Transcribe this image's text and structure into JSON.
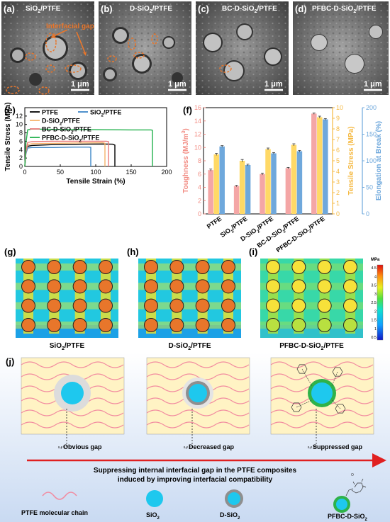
{
  "sem": {
    "panels": [
      {
        "label": "(a)",
        "title_main": "SiO",
        "title_sub": "2",
        "title_tail": "/PTFE",
        "annotation": "Interfacial gap",
        "scale": "1 μm"
      },
      {
        "label": "(b)",
        "title_main": "D-SiO",
        "title_sub": "2",
        "title_tail": "/PTFE",
        "scale": "1 μm"
      },
      {
        "label": "(c)",
        "title_main": "BC-D-SiO",
        "title_sub": "2",
        "title_tail": "/PTFE",
        "scale": "1 μm"
      },
      {
        "label": "(d)",
        "title_main": "PFBC-D-SiO",
        "title_sub": "2",
        "title_tail": "/PTFE",
        "scale": "1 μm"
      }
    ]
  },
  "chart_data": [
    {
      "panel": "(e)",
      "type": "line",
      "xlabel": "Tensile Strain (%)",
      "ylabel": "Tensile Stress (MPa)",
      "xlim": [
        0,
        200
      ],
      "ylim": [
        0,
        14
      ],
      "xticks": [
        0,
        50,
        100,
        150,
        200
      ],
      "yticks": [
        0,
        2,
        4,
        6,
        8,
        10,
        12
      ],
      "legend_position": "top",
      "series": [
        {
          "name": "PTFE",
          "color": "#000000",
          "x": [
            0,
            1.5,
            4,
            10,
            40,
            80,
            110,
            124,
            127,
            127
          ],
          "y": [
            0,
            3.2,
            4.8,
            5.0,
            5.2,
            5.3,
            5.35,
            5.3,
            5.1,
            0
          ]
        },
        {
          "name": "SiO2/PTFE",
          "color": "#3d85c6",
          "x": [
            0,
            1.5,
            4,
            10,
            40,
            70,
            90,
            93,
            93
          ],
          "y": [
            0,
            3.0,
            4.4,
            4.5,
            4.5,
            4.6,
            4.6,
            4.55,
            0
          ]
        },
        {
          "name": "D-SiO2/PTFE",
          "color": "#f6b26b",
          "x": [
            0,
            1.5,
            4,
            10,
            40,
            80,
            110,
            113,
            113
          ],
          "y": [
            0,
            3.4,
            5.2,
            5.4,
            5.5,
            5.6,
            5.65,
            5.5,
            0
          ]
        },
        {
          "name": "BC-D-SiO2/PTFE",
          "color": "#ea7b7b",
          "x": [
            0,
            1.5,
            4,
            10,
            40,
            80,
            115,
            118,
            118
          ],
          "y": [
            0,
            3.6,
            5.7,
            5.9,
            6.0,
            6.0,
            6.0,
            5.9,
            0
          ]
        },
        {
          "name": "PFBC-D-SiO2/PTFE",
          "color": "#22b14c",
          "x": [
            0,
            1.5,
            4,
            10,
            50,
            100,
            150,
            178,
            180,
            180
          ],
          "y": [
            0,
            5.5,
            8.7,
            8.9,
            8.8,
            8.75,
            8.7,
            8.7,
            8.6,
            0
          ]
        }
      ],
      "legend": {
        "entries": [
          {
            "main": "PTFE",
            "sub": "",
            "tail": ""
          },
          {
            "main": "SiO",
            "sub": "2",
            "tail": "/PTFE"
          },
          {
            "main": "D-SiO",
            "sub": "2",
            "tail": "/PTFE"
          },
          {
            "main": "BC-D-SiO",
            "sub": "2",
            "tail": "/PTFE"
          },
          {
            "main": "PFBC-D-SiO",
            "sub": "2",
            "tail": "/PTFE"
          }
        ]
      }
    },
    {
      "panel": "(f)",
      "type": "bar",
      "categories": [
        "PTFE",
        "SiO2/PTFE",
        "D-SiO2/PTFE",
        "BC-D-SiO2/PTFE",
        "PFBC-D-SiO2/PTFE"
      ],
      "category_labels": [
        {
          "main": "PTFE",
          "sub": "",
          "tail": ""
        },
        {
          "main": "SiO",
          "sub": "2",
          "tail": "/PTFE"
        },
        {
          "main": "D-SiO",
          "sub": "2",
          "tail": "/PTFE"
        },
        {
          "main": "BC-D-SiO",
          "sub": "2",
          "tail": "/PTFE"
        },
        {
          "main": "PFBC-D-SiO",
          "sub": "2",
          "tail": "/PTFE"
        }
      ],
      "axes": {
        "left": {
          "label_main": "Toughness (MJ/m",
          "label_sup": "3",
          "label_tail": ")",
          "color": "#f28b82",
          "ylim": [
            0,
            16
          ],
          "ticks": [
            0,
            2,
            4,
            6,
            8,
            10,
            12,
            14,
            16
          ]
        },
        "right1": {
          "label": "Tensile Stress (MPa)",
          "color": "#f5b942",
          "ylim": [
            0,
            10
          ],
          "ticks": [
            0,
            1,
            2,
            3,
            4,
            5,
            6,
            7,
            8,
            9,
            10
          ]
        },
        "right2": {
          "label": "Elongation at Break (%)",
          "color": "#6fa8dc",
          "ylim": [
            0,
            200
          ],
          "ticks": [
            0,
            50,
            100,
            150,
            200
          ]
        }
      },
      "series": [
        {
          "name": "Toughness",
          "axis": "left",
          "color": "#f4a6a6",
          "values": [
            6.6,
            4.2,
            6.0,
            6.9,
            15.1
          ],
          "errors": [
            0.15,
            0.1,
            0.15,
            0.1,
            0.1
          ]
        },
        {
          "name": "Tensile Stress",
          "axis": "right1",
          "color": "#ffd966",
          "values": [
            5.6,
            5.0,
            6.1,
            6.5,
            9.1
          ],
          "errors": [
            0.1,
            0.12,
            0.1,
            0.1,
            0.1
          ]
        },
        {
          "name": "Elongation at Break",
          "axis": "right2",
          "color": "#6fa8dc",
          "values": [
            127,
            92,
            114,
            118,
            178
          ],
          "errors": [
            1.5,
            1.5,
            1.5,
            1.5,
            1.5
          ]
        }
      ]
    },
    {
      "type": "heatmap",
      "colorbar": {
        "unit": "MPa",
        "ticks": [
          4.5,
          4,
          3.5,
          3,
          2.5,
          2,
          1.5,
          1,
          0.5
        ]
      },
      "panels": [
        {
          "label": "(g)",
          "caption_main": "SiO",
          "caption_sub": "2",
          "caption_tail": "/PTFE",
          "particle_color": "#e8762b"
        },
        {
          "label": "(h)",
          "caption_main": "D-SiO",
          "caption_sub": "2",
          "caption_tail": "/PTFE",
          "particle_color": "#e8762b"
        },
        {
          "label": "(i)",
          "caption_main": "PFBC-D-SiO",
          "caption_sub": "2",
          "caption_tail": "/PTFE",
          "particle_color": "#f6e13a"
        }
      ]
    }
  ],
  "schematic": {
    "label": "(j)",
    "gaps": [
      "Obvious gap",
      "Decreased gap",
      "Suppressed gap"
    ],
    "caption_line1": "Suppressing internal interfacial gap in the PTFE composites",
    "caption_line2": "induced by improving interfacial compatibility",
    "legend": {
      "chain": "PTFE molecular chain",
      "sio2_main": "SiO",
      "sio2_sub": "2",
      "dsio2_main": "D-SiO",
      "dsio2_sub": "2",
      "pfbc_main": "PFBC-D-SiO",
      "pfbc_sub": "2"
    },
    "colors": {
      "chain": "#f28ba0",
      "particle": "#1ec8ee",
      "arrow": "#e02020",
      "box": "#fff3c4",
      "banner_top": "#ffffff",
      "banner_bottom": "#c9daf2"
    }
  }
}
